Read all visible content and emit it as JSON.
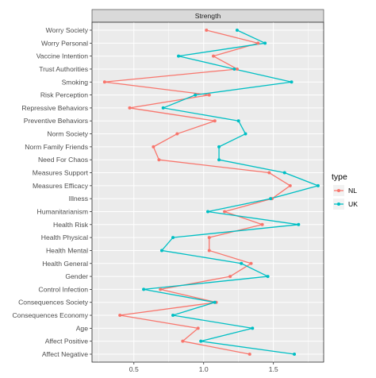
{
  "chart_data": {
    "type": "line",
    "panel_title": "Strength",
    "categories": [
      "Worry Society",
      "Worry Personal",
      "Vaccine Intention",
      "Trust Authorities",
      "Smoking",
      "Risk Perception",
      "Repressive Behaviors",
      "Preventive Behaviors",
      "Norm Society",
      "Norm Family Friends",
      "Need For Chaos",
      "Measures Support",
      "Measures Efficacy",
      "Illness",
      "Humanitarianism",
      "Health Risk",
      "Health Physical",
      "Health Mental",
      "Health General",
      "Gender",
      "Control Infection",
      "Consequences Society",
      "Consequences Economy",
      "Age",
      "Affect Positive",
      "Affect Negative"
    ],
    "series": [
      {
        "name": "NL",
        "color": "#F8766D",
        "values": [
          1.02,
          1.39,
          1.07,
          1.24,
          0.29,
          1.04,
          0.47,
          1.08,
          0.81,
          0.64,
          0.68,
          1.47,
          1.62,
          1.49,
          1.15,
          1.42,
          1.04,
          1.04,
          1.34,
          1.19,
          0.69,
          1.09,
          0.4,
          0.96,
          0.85,
          1.33
        ]
      },
      {
        "name": "UK",
        "color": "#00BFC4",
        "values": [
          1.24,
          1.44,
          0.82,
          1.22,
          1.63,
          0.94,
          0.71,
          1.25,
          1.3,
          1.11,
          1.11,
          1.58,
          1.82,
          1.48,
          1.03,
          1.68,
          0.78,
          0.7,
          1.27,
          1.46,
          0.57,
          1.08,
          0.78,
          1.35,
          0.98,
          1.65
        ]
      }
    ],
    "x_ticks": [
      "0.5",
      "1.0",
      "1.5"
    ],
    "x_tick_values": [
      0.5,
      1.0,
      1.5
    ],
    "xlim": [
      0.2,
      1.86
    ],
    "legend": {
      "title": "type",
      "position": "right",
      "entries": [
        "NL",
        "UK"
      ]
    },
    "grid": true,
    "panel_background": "#EBEBEB",
    "strip_background": "#D9D9D9"
  }
}
